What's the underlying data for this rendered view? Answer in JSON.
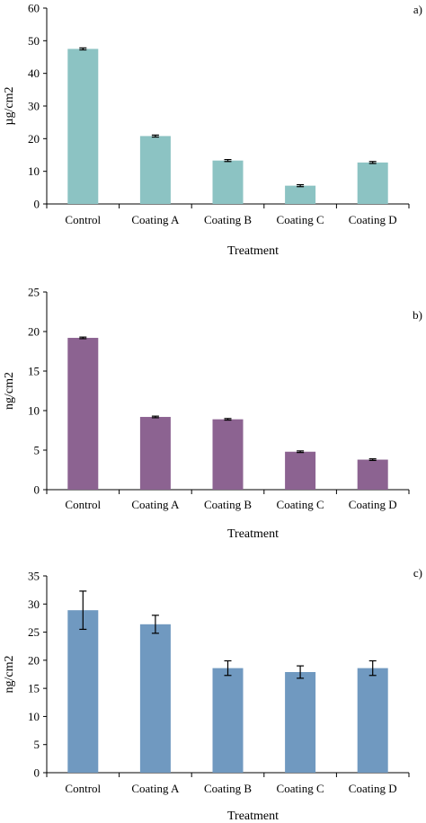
{
  "chart_data": [
    {
      "type": "bar",
      "panel_label": "a)",
      "categories": [
        "Control",
        "Coating A",
        "Coating B",
        "Coating C",
        "Coating D"
      ],
      "values": [
        47.5,
        20.8,
        13.3,
        5.6,
        12.7
      ],
      "errors": [
        0.3,
        0.3,
        0.3,
        0.3,
        0.3
      ],
      "xlabel": "Treatment",
      "ylabel": "µg/cm2",
      "ylim": [
        0,
        60
      ],
      "yticks": [
        "0",
        "10",
        "20",
        "30",
        "40",
        "50",
        "60"
      ],
      "color": "#8cc3c3",
      "grid": false
    },
    {
      "type": "bar",
      "panel_label": "b)",
      "categories": [
        "Control",
        "Coating A",
        "Coating B",
        "Coating C",
        "Coating D"
      ],
      "values": [
        19.2,
        9.2,
        8.9,
        4.8,
        3.8
      ],
      "errors": [
        0.1,
        0.1,
        0.1,
        0.1,
        0.1
      ],
      "xlabel": "Treatment",
      "ylabel": "ng/cm2",
      "ylim": [
        0,
        25
      ],
      "yticks": [
        "0",
        "5",
        "10",
        "15",
        "20",
        "25"
      ],
      "color": "#8c6391",
      "grid": false
    },
    {
      "type": "bar",
      "panel_label": "c)",
      "categories": [
        "Control",
        "Coating A",
        "Coating B",
        "Coating C",
        "Coating D"
      ],
      "values": [
        28.9,
        26.4,
        18.6,
        17.9,
        18.6
      ],
      "errors": [
        3.4,
        1.6,
        1.3,
        1.1,
        1.3
      ],
      "xlabel": "Treatment",
      "ylabel": "ng/cm2",
      "ylim": [
        0,
        35
      ],
      "yticks": [
        "0",
        "5",
        "10",
        "15",
        "20",
        "25",
        "30",
        "35"
      ],
      "color": "#7099c0",
      "grid": false
    }
  ]
}
